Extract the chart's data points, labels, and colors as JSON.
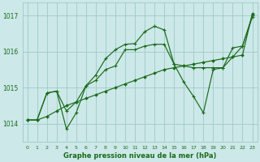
{
  "title": "Graphe pression niveau de la mer (hPa)",
  "bg_color": "#cce8e8",
  "grid_color": "#a0c8c8",
  "line_color": "#1a6b1a",
  "xlim": [
    -0.5,
    23.5
  ],
  "ylim": [
    1013.5,
    1017.35
  ],
  "yticks": [
    1014,
    1015,
    1016,
    1017
  ],
  "xticks": [
    0,
    1,
    2,
    3,
    4,
    5,
    6,
    7,
    8,
    9,
    10,
    11,
    12,
    13,
    14,
    15,
    16,
    17,
    18,
    19,
    20,
    21,
    22,
    23
  ],
  "s_linear": [
    1014.1,
    1014.1,
    1014.2,
    1014.35,
    1014.5,
    1014.6,
    1014.7,
    1014.8,
    1014.9,
    1015.0,
    1015.1,
    1015.2,
    1015.3,
    1015.4,
    1015.5,
    1015.55,
    1015.6,
    1015.65,
    1015.7,
    1015.75,
    1015.8,
    1015.85,
    1015.9,
    1017.05
  ],
  "s_jagged": [
    1014.1,
    1014.1,
    1014.85,
    1014.9,
    1013.85,
    1014.3,
    1015.05,
    1015.35,
    1015.8,
    1016.05,
    1016.2,
    1016.22,
    1016.55,
    1016.7,
    1016.6,
    1015.65,
    1015.15,
    1014.75,
    1014.3,
    1015.5,
    1015.55,
    1015.85,
    1016.15,
    1016.95
  ],
  "s_mid": [
    1014.1,
    1014.1,
    1014.85,
    1014.9,
    1014.35,
    1014.6,
    1015.05,
    1015.2,
    1015.5,
    1015.6,
    1016.05,
    1016.05,
    1016.15,
    1016.2,
    1016.2,
    1015.65,
    1015.6,
    1015.55,
    1015.55,
    1015.55,
    1015.55,
    1016.1,
    1016.15,
    1017.0
  ]
}
